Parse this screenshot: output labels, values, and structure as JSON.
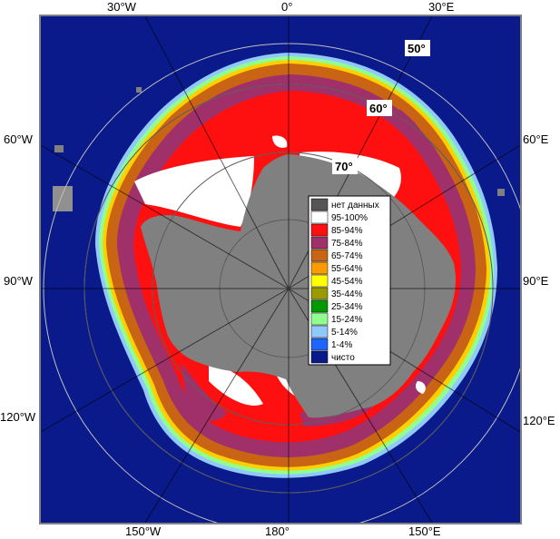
{
  "map": {
    "longitude_labels": {
      "top": [
        "30°W",
        "0°",
        "30°E"
      ],
      "left": [
        "60°W",
        "90°W",
        "120°W"
      ],
      "right": [
        "60°E",
        "90°E",
        "120°E"
      ],
      "bottom": [
        "150°W",
        "180°",
        "150°E"
      ]
    },
    "latitude_labels": [
      "50°",
      "60°",
      "70°"
    ],
    "colors": {
      "ocean": "#0a1a8a",
      "land": "#808080",
      "frame": "#808080",
      "grid": "#c0c0c0"
    }
  },
  "legend": {
    "items": [
      {
        "label": "нет данных",
        "color": "#555555"
      },
      {
        "label": "95-100%",
        "color": "#ffffff"
      },
      {
        "label": "85-94%",
        "color": "#ff1010"
      },
      {
        "label": "75-84%",
        "color": "#a0306a"
      },
      {
        "label": "65-74%",
        "color": "#c86414"
      },
      {
        "label": "55-64%",
        "color": "#ff9a00"
      },
      {
        "label": "45-54%",
        "color": "#ffff00"
      },
      {
        "label": "35-44%",
        "color": "#9a9a00"
      },
      {
        "label": "25-34%",
        "color": "#009a00"
      },
      {
        "label": "15-24%",
        "color": "#90ff90"
      },
      {
        "label": "5-14%",
        "color": "#90c8ff"
      },
      {
        "label": "1-4%",
        "color": "#1e64ff"
      },
      {
        "label": "чисто",
        "color": "#0a1a8a"
      }
    ]
  }
}
